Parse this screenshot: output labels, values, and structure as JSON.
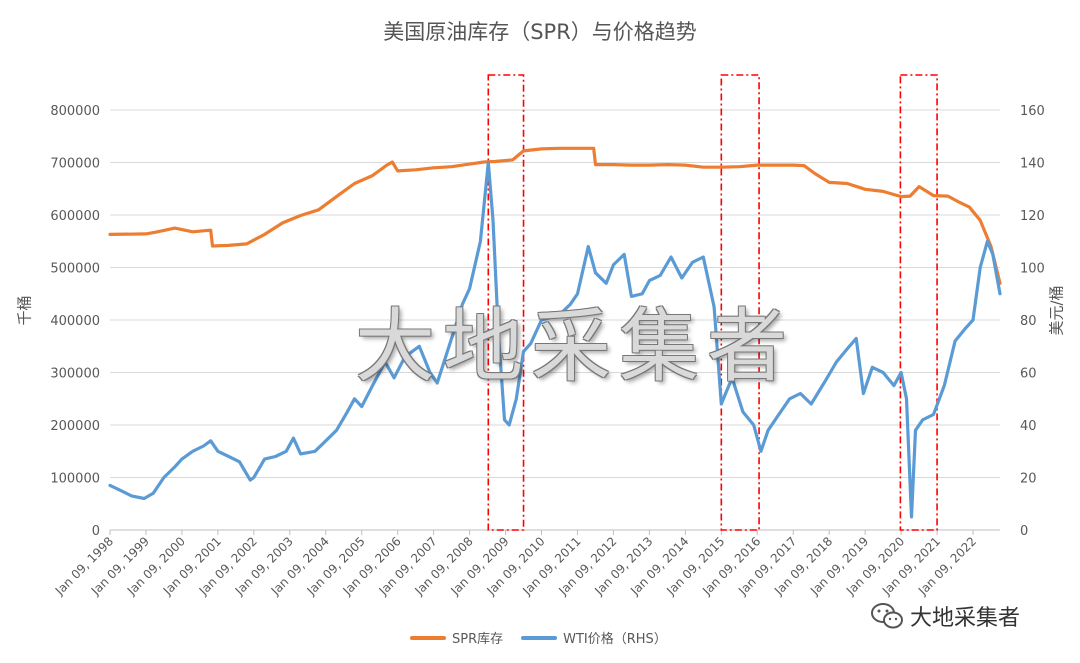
{
  "chart_data": {
    "type": "line",
    "title": "美国原油库存（SPR）与价格趋势",
    "ylabel_left": "千桶",
    "ylabel_right": "美元/桶",
    "ylim_left": [
      0,
      800000
    ],
    "ylim_right": [
      0,
      160
    ],
    "yticks_left": [
      "0",
      "100000",
      "200000",
      "300000",
      "400000",
      "500000",
      "600000",
      "700000",
      "800000"
    ],
    "yticks_right": [
      "0",
      "20",
      "40",
      "60",
      "80",
      "100",
      "120",
      "140",
      "160"
    ],
    "xlim": [
      1998.0,
      2022.75
    ],
    "xticks": [
      "Jan 09, 1998",
      "Jan 09, 1999",
      "Jan 09, 2000",
      "Jan 09, 2001",
      "Jan 09, 2002",
      "Jan 09, 2003",
      "Jan 09, 2004",
      "Jan 09, 2005",
      "Jan 09, 2006",
      "Jan 09, 2007",
      "Jan 09, 2008",
      "Jan 09, 2009",
      "Jan 09, 2010",
      "Jan 09, 2011",
      "Jan 09, 2012",
      "Jan 09, 2013",
      "Jan 09, 2014",
      "Jan 09, 2015",
      "Jan 09, 2016",
      "Jan 09, 2017",
      "Jan 09, 2018",
      "Jan 09, 2019",
      "Jan 09, 2020",
      "Jan 09, 2021",
      "Jan 09, 2022"
    ],
    "series": [
      {
        "name": "SPR库存",
        "axis": "left",
        "color": "#ED7D31",
        "x": [
          1998.0,
          1999.0,
          1999.25,
          1999.6,
          1999.8,
          2000.3,
          2000.6,
          2000.8,
          2000.85,
          2001.3,
          2001.8,
          2002.3,
          2002.8,
          2003.3,
          2003.8,
          2004.3,
          2004.8,
          2005.3,
          2005.7,
          2005.85,
          2006.0,
          2006.5,
          2007.0,
          2007.5,
          2008.0,
          2008.4,
          2008.7,
          2009.2,
          2009.5,
          2010.0,
          2010.5,
          2011.0,
          2011.45,
          2011.5,
          2012.0,
          2012.5,
          2013.0,
          2013.5,
          2014.0,
          2014.5,
          2015.0,
          2015.5,
          2016.0,
          2016.5,
          2017.0,
          2017.3,
          2017.6,
          2018.0,
          2018.5,
          2019.0,
          2019.5,
          2020.0,
          2020.25,
          2020.5,
          2020.9,
          2021.3,
          2021.6,
          2021.9,
          2022.2,
          2022.5,
          2022.75
        ],
        "values": [
          563000,
          564000,
          567000,
          572000,
          575000,
          568000,
          570000,
          571000,
          541000,
          542000,
          545000,
          563000,
          585000,
          599000,
          610000,
          635000,
          660000,
          675000,
          695000,
          701000,
          684000,
          686000,
          690000,
          692000,
          697000,
          701000,
          702000,
          705000,
          722000,
          726000,
          727000,
          727000,
          727000,
          696000,
          696000,
          695000,
          695000,
          696000,
          695000,
          691000,
          691000,
          692000,
          695000,
          695000,
          695000,
          694000,
          679000,
          662000,
          660000,
          649000,
          645000,
          635000,
          636000,
          654000,
          637000,
          636000,
          625000,
          615000,
          590000,
          540000,
          470000
        ]
      },
      {
        "name": "WTI价格（RHS）",
        "axis": "right",
        "color": "#5B9BD5",
        "x": [
          1998.0,
          1998.3,
          1998.6,
          1998.95,
          1999.2,
          1999.5,
          1999.8,
          2000.0,
          2000.3,
          2000.6,
          2000.8,
          2001.0,
          2001.3,
          2001.6,
          2001.9,
          2002.0,
          2002.3,
          2002.6,
          2002.9,
          2003.1,
          2003.3,
          2003.7,
          2004.0,
          2004.3,
          2004.6,
          2004.8,
          2005.0,
          2005.3,
          2005.65,
          2005.9,
          2006.2,
          2006.6,
          2006.9,
          2007.1,
          2007.5,
          2007.8,
          2008.0,
          2008.3,
          2008.52,
          2008.65,
          2008.8,
          2008.97,
          2009.1,
          2009.3,
          2009.5,
          2009.7,
          2010.0,
          2010.5,
          2010.8,
          2011.0,
          2011.3,
          2011.5,
          2011.8,
          2012.0,
          2012.3,
          2012.5,
          2012.8,
          2013.0,
          2013.3,
          2013.6,
          2013.9,
          2014.2,
          2014.5,
          2014.8,
          2015.0,
          2015.3,
          2015.6,
          2015.9,
          2016.1,
          2016.3,
          2016.6,
          2016.9,
          2017.2,
          2017.5,
          2017.9,
          2018.2,
          2018.5,
          2018.75,
          2018.95,
          2019.2,
          2019.5,
          2019.8,
          2020.0,
          2020.15,
          2020.29,
          2020.4,
          2020.6,
          2020.9,
          2021.2,
          2021.5,
          2021.8,
          2022.0,
          2022.2,
          2022.4,
          2022.55,
          2022.75
        ],
        "values": [
          17,
          15,
          13,
          12,
          14,
          20,
          24,
          27,
          30,
          32,
          34,
          30,
          28,
          26,
          19,
          20,
          27,
          28,
          30,
          35,
          29,
          30,
          34,
          38,
          45,
          50,
          47,
          55,
          64,
          58,
          66,
          70,
          60,
          56,
          73,
          86,
          92,
          110,
          140,
          118,
          75,
          42,
          40,
          50,
          68,
          71,
          80,
          82,
          86,
          90,
          108,
          98,
          94,
          101,
          105,
          89,
          90,
          95,
          97,
          104,
          96,
          102,
          104,
          85,
          48,
          58,
          45,
          40,
          30,
          38,
          44,
          50,
          52,
          48,
          57,
          64,
          69,
          73,
          52,
          62,
          60,
          55,
          60,
          50,
          5,
          38,
          42,
          44,
          55,
          72,
          77,
          80,
          100,
          110,
          105,
          90
        ]
      }
    ],
    "highlight_periods": [
      [
        2008.52,
        2009.5
      ],
      [
        2015.0,
        2016.05
      ],
      [
        2019.98,
        2021.0
      ]
    ],
    "legend": [
      "SPR库存",
      "WTI价格（RHS）"
    ],
    "grid": true,
    "legend_position": "bottom"
  },
  "watermark": "大地采集者",
  "brand": "大地采集者",
  "colors": {
    "spr": "#ED7D31",
    "wti": "#5B9BD5",
    "highlight": "#FF0000",
    "grid": "#D9D9D9"
  }
}
